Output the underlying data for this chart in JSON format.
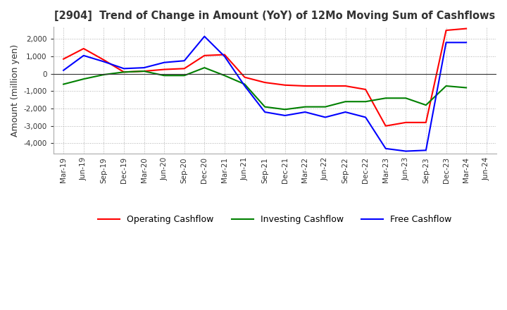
{
  "title": "[2904]  Trend of Change in Amount (YoY) of 12Mo Moving Sum of Cashflows",
  "ylabel": "Amount (million yen)",
  "ylim": [
    -4600,
    2700
  ],
  "yticks": [
    2000,
    1000,
    0,
    -1000,
    -2000,
    -3000,
    -4000
  ],
  "x_labels": [
    "Mar-19",
    "Jun-19",
    "Sep-19",
    "Dec-19",
    "Mar-20",
    "Jun-20",
    "Sep-20",
    "Dec-20",
    "Mar-21",
    "Jun-21",
    "Sep-21",
    "Dec-21",
    "Mar-22",
    "Jun-22",
    "Sep-22",
    "Dec-22",
    "Mar-23",
    "Jun-23",
    "Sep-23",
    "Dec-23",
    "Mar-24",
    "Jun-24"
  ],
  "operating": [
    850,
    1450,
    800,
    100,
    150,
    250,
    300,
    1050,
    1100,
    -200,
    -500,
    -650,
    -700,
    -700,
    -700,
    -900,
    -3000,
    -2800,
    -2800,
    2500,
    2600,
    null
  ],
  "investing": [
    -600,
    -300,
    -50,
    100,
    150,
    -100,
    -100,
    350,
    -100,
    -600,
    -1900,
    -2050,
    -1900,
    -1900,
    -1600,
    -1600,
    -1400,
    -1400,
    -1800,
    -700,
    -800,
    null
  ],
  "free": [
    200,
    1050,
    700,
    300,
    350,
    650,
    750,
    2150,
    1000,
    -700,
    -2200,
    -2400,
    -2200,
    -2500,
    -2200,
    -2500,
    -4300,
    -4450,
    -4400,
    1800,
    1800,
    null
  ],
  "operating_color": "#ff0000",
  "investing_color": "#008000",
  "free_color": "#0000ff",
  "background_color": "#ffffff",
  "grid_color": "#b0b0b0",
  "title_color": "#333333"
}
